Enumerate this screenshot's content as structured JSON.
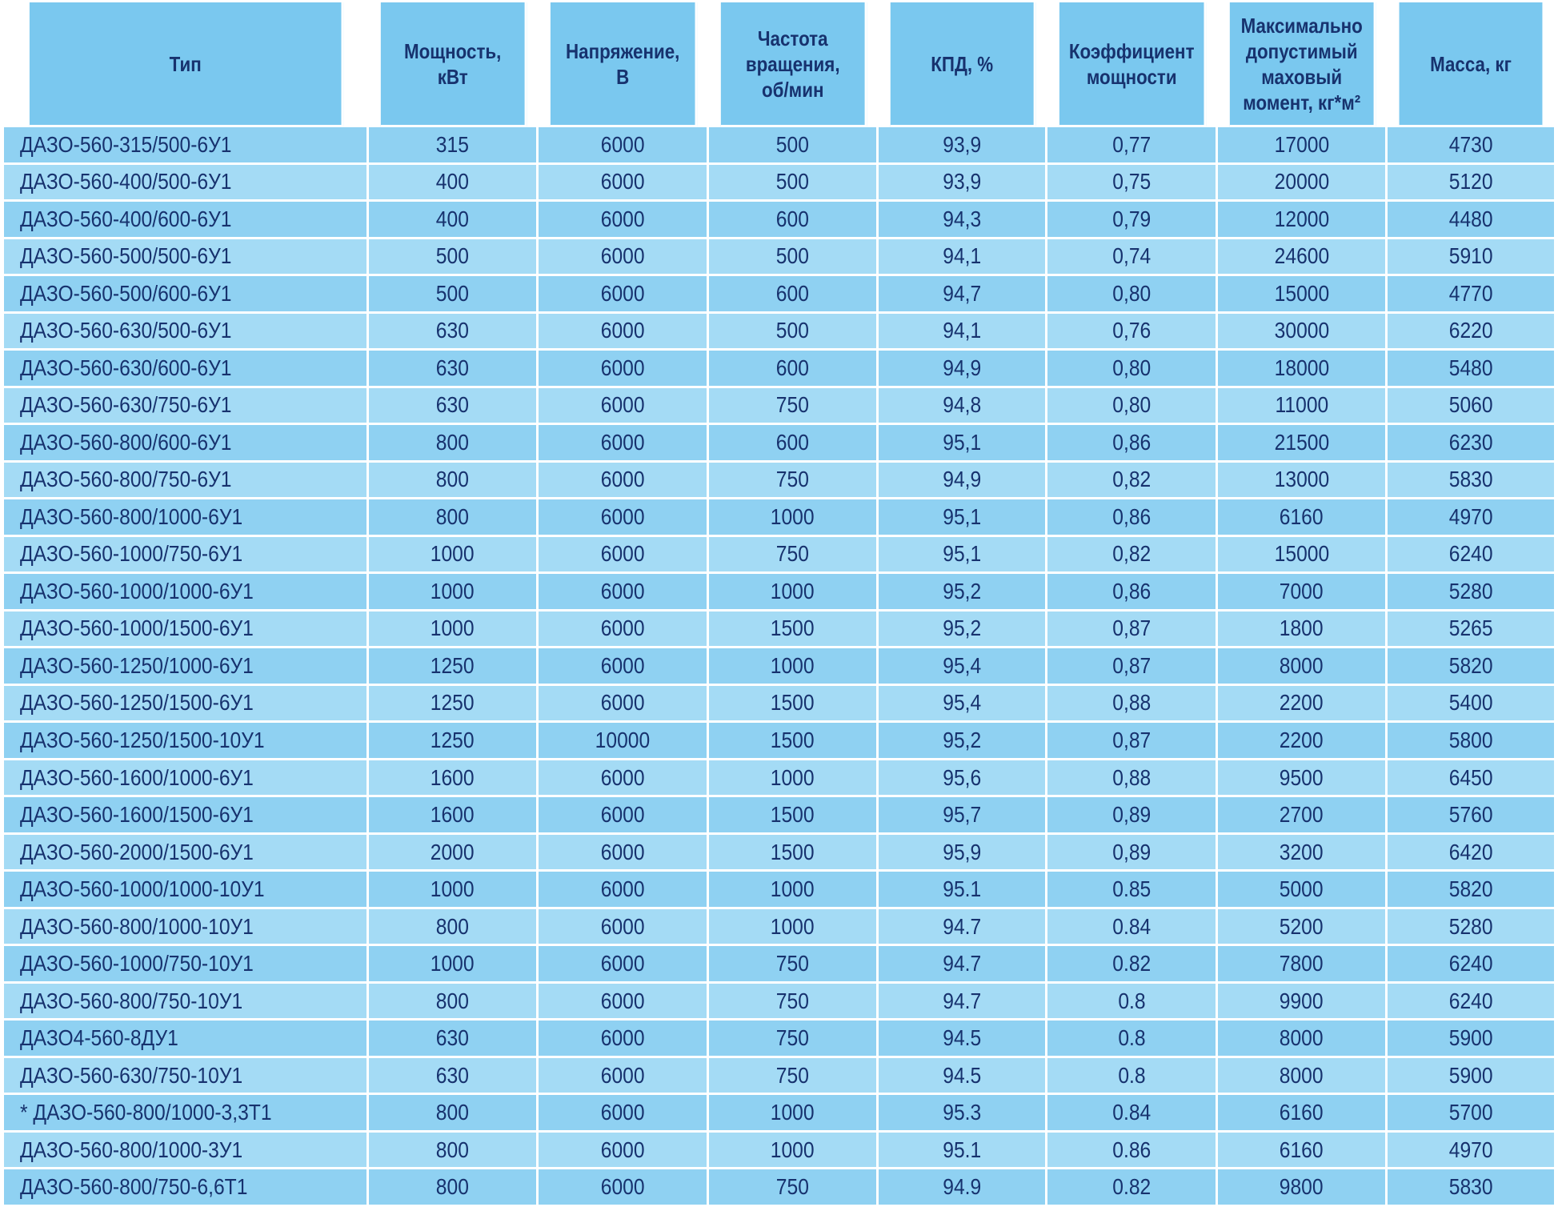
{
  "table": {
    "headers": [
      "Тип",
      "Мощность,\nкВт",
      "Напряжение,\nВ",
      "Частота\nвращения,\nоб/мин",
      "КПД, %",
      "Коэффициент\nмощности",
      "Максимально\nдопустимый\nмаховый\nмомент, кг*м²",
      "Масса, кг"
    ],
    "rows": [
      [
        "ДАЗО-560-315/500-6У1",
        "315",
        "6000",
        "500",
        "93,9",
        "0,77",
        "17000",
        "4730"
      ],
      [
        "ДАЗО-560-400/500-6У1",
        "400",
        "6000",
        "500",
        "93,9",
        "0,75",
        "20000",
        "5120"
      ],
      [
        "ДАЗО-560-400/600-6У1",
        "400",
        "6000",
        "600",
        "94,3",
        "0,79",
        "12000",
        "4480"
      ],
      [
        "ДАЗО-560-500/500-6У1",
        "500",
        "6000",
        "500",
        "94,1",
        "0,74",
        "24600",
        "5910"
      ],
      [
        "ДАЗО-560-500/600-6У1",
        "500",
        "6000",
        "600",
        "94,7",
        "0,80",
        "15000",
        "4770"
      ],
      [
        "ДАЗО-560-630/500-6У1",
        "630",
        "6000",
        "500",
        "94,1",
        "0,76",
        "30000",
        "6220"
      ],
      [
        "ДАЗО-560-630/600-6У1",
        "630",
        "6000",
        "600",
        "94,9",
        "0,80",
        "18000",
        "5480"
      ],
      [
        "ДАЗО-560-630/750-6У1",
        "630",
        "6000",
        "750",
        "94,8",
        "0,80",
        "11000",
        "5060"
      ],
      [
        "ДАЗО-560-800/600-6У1",
        "800",
        "6000",
        "600",
        "95,1",
        "0,86",
        "21500",
        "6230"
      ],
      [
        "ДАЗО-560-800/750-6У1",
        "800",
        "6000",
        "750",
        "94,9",
        "0,82",
        "13000",
        "5830"
      ],
      [
        "ДАЗО-560-800/1000-6У1",
        "800",
        "6000",
        "1000",
        "95,1",
        "0,86",
        "6160",
        "4970"
      ],
      [
        "ДАЗО-560-1000/750-6У1",
        "1000",
        "6000",
        "750",
        "95,1",
        "0,82",
        "15000",
        "6240"
      ],
      [
        "ДАЗО-560-1000/1000-6У1",
        "1000",
        "6000",
        "1000",
        "95,2",
        "0,86",
        "7000",
        "5280"
      ],
      [
        "ДАЗО-560-1000/1500-6У1",
        "1000",
        "6000",
        "1500",
        "95,2",
        "0,87",
        "1800",
        "5265"
      ],
      [
        "ДАЗО-560-1250/1000-6У1",
        "1250",
        "6000",
        "1000",
        "95,4",
        "0,87",
        "8000",
        "5820"
      ],
      [
        "ДАЗО-560-1250/1500-6У1",
        "1250",
        "6000",
        "1500",
        "95,4",
        "0,88",
        "2200",
        "5400"
      ],
      [
        "ДАЗО-560-1250/1500-10У1",
        "1250",
        "10000",
        "1500",
        "95,2",
        "0,87",
        "2200",
        "5800"
      ],
      [
        "ДАЗО-560-1600/1000-6У1",
        "1600",
        "6000",
        "1000",
        "95,6",
        "0,88",
        "9500",
        "6450"
      ],
      [
        "ДАЗО-560-1600/1500-6У1",
        "1600",
        "6000",
        "1500",
        "95,7",
        "0,89",
        "2700",
        "5760"
      ],
      [
        "ДАЗО-560-2000/1500-6У1",
        "2000",
        "6000",
        "1500",
        "95,9",
        "0,89",
        "3200",
        "6420"
      ],
      [
        "ДАЗО-560-1000/1000-10У1",
        "1000",
        "6000",
        "1000",
        "95.1",
        "0.85",
        "5000",
        "5820"
      ],
      [
        "ДАЗО-560-800/1000-10У1",
        "800",
        "6000",
        "1000",
        "94.7",
        "0.84",
        "5200",
        "5280"
      ],
      [
        "ДАЗО-560-1000/750-10У1",
        "1000",
        "6000",
        "750",
        "94.7",
        "0.82",
        "7800",
        "6240"
      ],
      [
        "ДАЗО-560-800/750-10У1",
        "800",
        "6000",
        "750",
        "94.7",
        "0.8",
        "9900",
        "6240"
      ],
      [
        "ДАЗО4-560-8ДУ1",
        "630",
        "6000",
        "750",
        "94.5",
        "0.8",
        "8000",
        "5900"
      ],
      [
        "ДАЗО-560-630/750-10У1",
        "630",
        "6000",
        "750",
        "94.5",
        "0.8",
        "8000",
        "5900"
      ],
      [
        "* ДАЗО-560-800/1000-3,3Т1",
        "800",
        "6000",
        "1000",
        "95.3",
        "0.84",
        "6160",
        "5700"
      ],
      [
        "ДАЗО-560-800/1000-3У1",
        "800",
        "6000",
        "1000",
        "95.1",
        "0.86",
        "6160",
        "4970"
      ],
      [
        "ДАЗО-560-800/750-6,6Т1",
        "800",
        "6000",
        "750",
        "94.9",
        "0.82",
        "9800",
        "5830"
      ]
    ]
  },
  "colors": {
    "header_bg": "#7ac8ef",
    "row_bg": "#8fd1f2",
    "row_alt_bg": "#a4dbf5",
    "text": "#17326e",
    "grid": "#ffffff"
  }
}
